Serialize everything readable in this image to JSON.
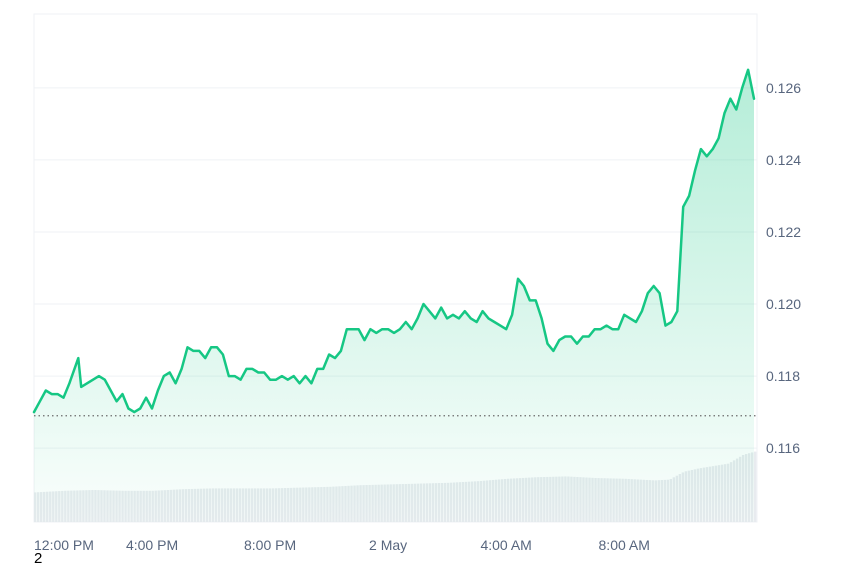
{
  "chart_data": {
    "type": "area",
    "title": "",
    "xlabel": "",
    "ylabel": "",
    "colors": {
      "line": "#16c784",
      "area_top": "#16c784",
      "grid": "#eff2f5",
      "baseline": "#6b6b6b",
      "volume": "#e8ebef"
    },
    "x_ticks": [
      "12:00 PM",
      "4:00 PM",
      "8:00 PM",
      "2 May",
      "4:00 AM",
      "8:00 AM"
    ],
    "x_tick_hours": [
      0,
      4,
      8,
      12,
      16,
      20
    ],
    "x_range_hours": [
      0,
      24.5
    ],
    "y_ticks": [
      "0.116",
      "0.118",
      "0.120",
      "0.122",
      "0.124",
      "0.126"
    ],
    "y_tick_values": [
      0.116,
      0.118,
      0.12,
      0.122,
      0.124,
      0.126
    ],
    "ylim": [
      0.11395,
      0.12805
    ],
    "reference_line": 0.1169,
    "grid": true,
    "series": [
      {
        "x_hours": [
          0,
          0.2,
          0.4,
          0.6,
          0.8,
          1.0,
          1.2,
          1.5,
          1.6,
          1.8,
          2.0,
          2.2,
          2.4,
          2.6,
          2.8,
          3.0,
          3.2,
          3.4,
          3.6,
          3.8,
          4.0,
          4.2,
          4.4,
          4.6,
          4.8,
          5.0,
          5.2,
          5.4,
          5.6,
          5.8,
          6.0,
          6.2,
          6.4,
          6.6,
          6.8,
          7.0,
          7.2,
          7.4,
          7.6,
          7.8,
          8.0,
          8.2,
          8.4,
          8.6,
          8.8,
          9.0,
          9.2,
          9.4,
          9.6,
          9.8,
          10.0,
          10.2,
          10.4,
          10.6,
          10.8,
          11.0,
          11.2,
          11.4,
          11.6,
          11.8,
          12.0,
          12.2,
          12.4,
          12.6,
          12.8,
          13.0,
          13.2,
          13.4,
          13.6,
          13.8,
          14.0,
          14.2,
          14.4,
          14.6,
          14.8,
          15.0,
          15.2,
          15.4,
          15.6,
          15.8,
          16.0,
          16.2,
          16.4,
          16.6,
          16.8,
          17.0,
          17.2,
          17.4,
          17.6,
          17.8,
          18.0,
          18.2,
          18.4,
          18.6,
          18.8,
          19.0,
          19.2,
          19.4,
          19.6,
          19.8,
          20.0,
          20.2,
          20.4,
          20.6,
          20.8,
          21.0,
          21.2,
          21.4,
          21.6,
          21.8,
          22.0,
          22.2,
          22.4,
          22.6,
          22.8,
          23.0,
          23.2,
          23.4,
          23.6,
          23.8,
          24.0,
          24.2,
          24.4
        ],
        "values": [
          0.117,
          0.1173,
          0.1176,
          0.1175,
          0.1175,
          0.1174,
          0.1178,
          0.1185,
          0.1177,
          0.1178,
          0.1179,
          0.118,
          0.1179,
          0.1176,
          0.1173,
          0.1175,
          0.1171,
          0.117,
          0.1171,
          0.1174,
          0.1171,
          0.1176,
          0.118,
          0.1181,
          0.1178,
          0.1182,
          0.1188,
          0.1187,
          0.1187,
          0.1185,
          0.1188,
          0.1188,
          0.1186,
          0.118,
          0.118,
          0.1179,
          0.1182,
          0.1182,
          0.1181,
          0.1181,
          0.1179,
          0.1179,
          0.118,
          0.1179,
          0.118,
          0.1178,
          0.118,
          0.1178,
          0.1182,
          0.1182,
          0.1186,
          0.1185,
          0.1187,
          0.1193,
          0.1193,
          0.1193,
          0.119,
          0.1193,
          0.1192,
          0.1193,
          0.1193,
          0.1192,
          0.1193,
          0.1195,
          0.1193,
          0.1196,
          0.12,
          0.1198,
          0.1196,
          0.1199,
          0.1196,
          0.1197,
          0.1196,
          0.1198,
          0.1196,
          0.1195,
          0.1198,
          0.1196,
          0.1195,
          0.1194,
          0.1193,
          0.1197,
          0.1207,
          0.1205,
          0.1201,
          0.1201,
          0.1196,
          0.1189,
          0.1187,
          0.119,
          0.1191,
          0.1191,
          0.1189,
          0.1191,
          0.1191,
          0.1193,
          0.1193,
          0.1194,
          0.1193,
          0.1193,
          0.1197,
          0.1196,
          0.1195,
          0.1198,
          0.1203,
          0.1205,
          0.1203,
          0.1194,
          0.1195,
          0.1198,
          0.1227,
          0.123,
          0.1237,
          0.1243,
          0.1241,
          0.1243,
          0.1246,
          0.1253,
          0.1257,
          0.1254,
          0.126,
          0.1265,
          0.1257
        ]
      }
    ],
    "volume_profile": {
      "x_hours": [
        0,
        1.0,
        2.0,
        3.0,
        4.0,
        5.0,
        6.0,
        7.0,
        8.0,
        9.0,
        10.0,
        11.0,
        12.0,
        13.0,
        14.0,
        15.0,
        16.0,
        17.0,
        18.0,
        19.0,
        20.0,
        21.0,
        21.5,
        22.0,
        22.5,
        23.0,
        23.5,
        24.0,
        24.4
      ],
      "relative": [
        0.37,
        0.39,
        0.4,
        0.39,
        0.39,
        0.41,
        0.42,
        0.42,
        0.42,
        0.43,
        0.44,
        0.46,
        0.47,
        0.48,
        0.49,
        0.51,
        0.54,
        0.56,
        0.57,
        0.55,
        0.54,
        0.52,
        0.53,
        0.63,
        0.67,
        0.7,
        0.73,
        0.84,
        0.88
      ]
    }
  },
  "footer": {
    "note": "2"
  }
}
